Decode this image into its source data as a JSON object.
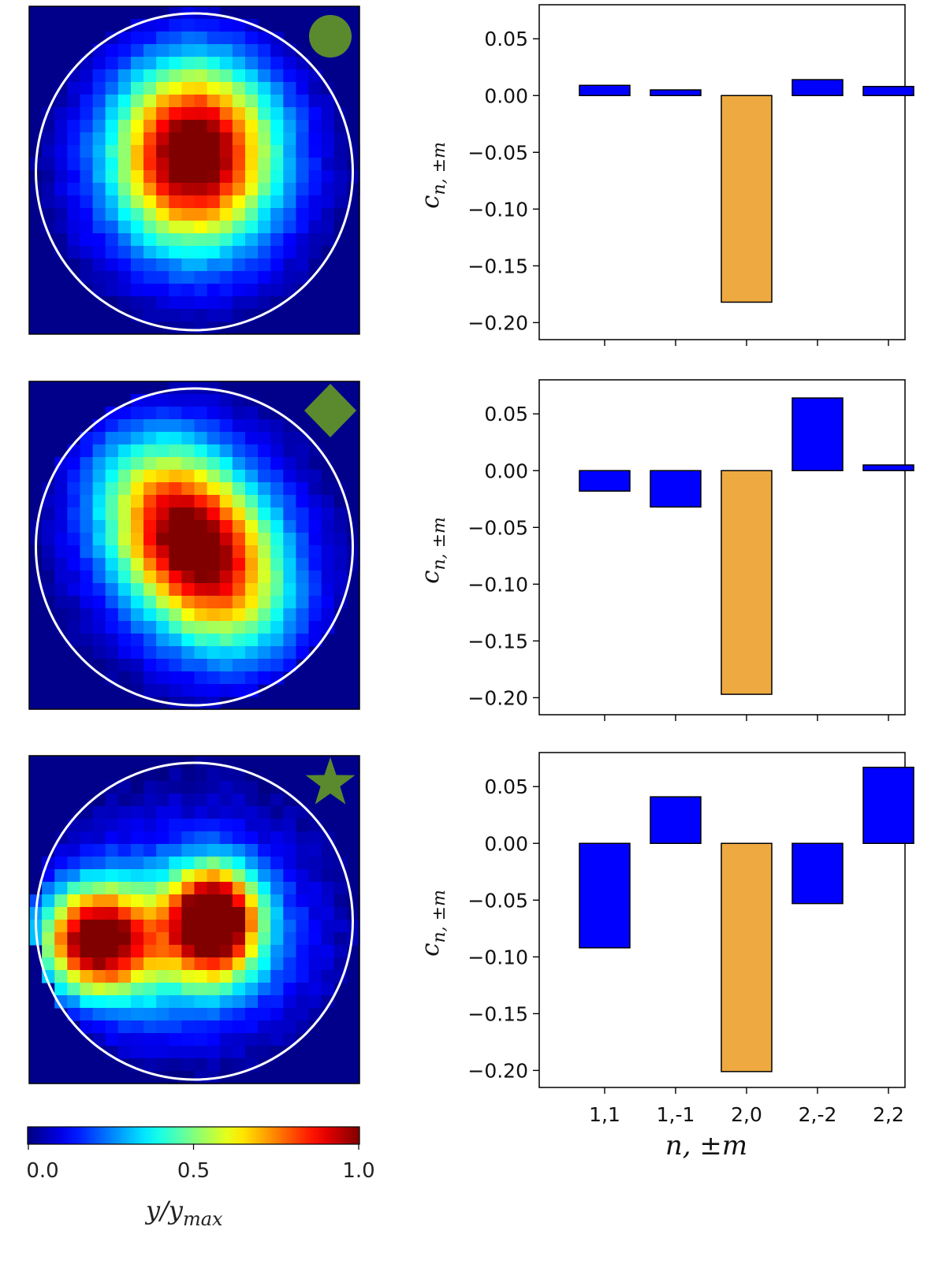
{
  "chart_data": [
    {
      "type": "bar",
      "panel": "top",
      "marker": "circle",
      "categories": [
        "1,1",
        "1,-1",
        "2,0",
        "2,-2",
        "2,2"
      ],
      "values": [
        0.009,
        0.005,
        -0.182,
        0.014,
        0.008
      ],
      "highlight_index": 2,
      "ylabel": "c_{n, ±m}",
      "ylim": [
        -0.215,
        0.08
      ],
      "yticks": [
        "0.05",
        "0.00",
        "−0.05",
        "−0.10",
        "−0.15",
        "−0.20"
      ],
      "show_xticklabels": false
    },
    {
      "type": "bar",
      "panel": "middle",
      "marker": "diamond",
      "categories": [
        "1,1",
        "1,-1",
        "2,0",
        "2,-2",
        "2,2"
      ],
      "values": [
        -0.018,
        -0.032,
        -0.197,
        0.064,
        0.005
      ],
      "highlight_index": 2,
      "ylabel": "c_{n, ±m}",
      "ylim": [
        -0.215,
        0.08
      ],
      "yticks": [
        "0.05",
        "0.00",
        "−0.05",
        "−0.10",
        "−0.15",
        "−0.20"
      ],
      "show_xticklabels": false
    },
    {
      "type": "bar",
      "panel": "bottom",
      "marker": "star",
      "categories": [
        "1,1",
        "1,-1",
        "2,0",
        "2,-2",
        "2,2"
      ],
      "values": [
        -0.092,
        0.041,
        -0.201,
        -0.053,
        0.067
      ],
      "highlight_index": 2,
      "ylabel": "c_{n, ±m}",
      "xlabel": "n, ±m",
      "ylim": [
        -0.215,
        0.08
      ],
      "yticks": [
        "0.05",
        "0.00",
        "−0.05",
        "−0.10",
        "−0.15",
        "−0.20"
      ],
      "show_xticklabels": true
    }
  ],
  "heatmaps": [
    {
      "marker": "circle",
      "blobs": [
        {
          "cx": 0.0,
          "cy": -0.1,
          "sx": 0.33,
          "sy": 0.38,
          "amp": 1.0
        }
      ],
      "noise": 0.04
    },
    {
      "marker": "diamond",
      "blobs": [
        {
          "cx": 0.0,
          "cy": 0.0,
          "sx": 0.3,
          "sy": 0.45,
          "amp": 1.0,
          "rot": 0.6
        }
      ],
      "noise": 0.04
    },
    {
      "marker": "star",
      "blobs": [
        {
          "cx": 0.12,
          "cy": 0.0,
          "sx": 0.18,
          "sy": 0.22,
          "amp": 1.0
        },
        {
          "cx": -0.6,
          "cy": 0.12,
          "sx": 0.22,
          "sy": 0.22,
          "amp": 0.82
        },
        {
          "cx": -0.2,
          "cy": 0.15,
          "sx": 0.5,
          "sy": 0.32,
          "amp": 0.35
        }
      ],
      "noise": 0.05
    }
  ],
  "colorbar": {
    "label_main": "y/y",
    "label_sub": "max",
    "ticks": [
      "0.0",
      "0.5",
      "1.0"
    ]
  },
  "colors": {
    "bar_default": "#0000ff",
    "bar_highlight": "#eeaa40",
    "marker": "#5b8a2e",
    "ring": "#ffffff",
    "background": "#00008b"
  }
}
